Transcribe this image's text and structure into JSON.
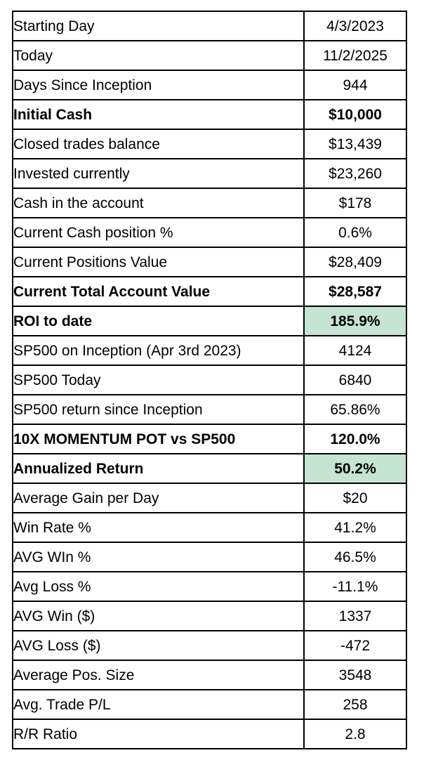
{
  "table": {
    "columns": [
      "metric",
      "value"
    ],
    "rows": [
      {
        "label": "Starting Day",
        "value": "4/3/2023",
        "bold": false,
        "highlight": false
      },
      {
        "label": "Today",
        "value": "11/2/2025",
        "bold": false,
        "highlight": false
      },
      {
        "label": "Days Since Inception",
        "value": "944",
        "bold": false,
        "highlight": false
      },
      {
        "label": "Initial Cash",
        "value": "$10,000",
        "bold": true,
        "highlight": false
      },
      {
        "label": "Closed trades balance",
        "value": "$13,439",
        "bold": false,
        "highlight": false
      },
      {
        "label": "Invested currently",
        "value": "$23,260",
        "bold": false,
        "highlight": false
      },
      {
        "label": "Cash in the account",
        "value": "$178",
        "bold": false,
        "highlight": false
      },
      {
        "label": "Current Cash position %",
        "value": "0.6%",
        "bold": false,
        "highlight": false
      },
      {
        "label": "Current Positions Value",
        "value": "$28,409",
        "bold": false,
        "highlight": false
      },
      {
        "label": "Current Total Account Value",
        "value": "$28,587",
        "bold": true,
        "highlight": false
      },
      {
        "label": "ROI to date",
        "value": "185.9%",
        "bold": true,
        "highlight": true
      },
      {
        "label": "SP500 on Inception (Apr 3rd 2023)",
        "value": "4124",
        "bold": false,
        "highlight": false
      },
      {
        "label": "SP500 Today",
        "value": "6840",
        "bold": false,
        "highlight": false
      },
      {
        "label": "SP500 return since Inception",
        "value": "65.86%",
        "bold": false,
        "highlight": false
      },
      {
        "label": "10X MOMENTUM POT vs SP500",
        "value": "120.0%",
        "bold": true,
        "highlight": false
      },
      {
        "label": "Annualized Return",
        "value": "50.2%",
        "bold": true,
        "highlight": true
      },
      {
        "label": "Average Gain per Day",
        "value": "$20",
        "bold": false,
        "highlight": false
      },
      {
        "label": "Win Rate %",
        "value": "41.2%",
        "bold": false,
        "highlight": false
      },
      {
        "label": "AVG WIn %",
        "value": "46.5%",
        "bold": false,
        "highlight": false
      },
      {
        "label": "Avg Loss %",
        "value": "-11.1%",
        "bold": false,
        "highlight": false
      },
      {
        "label": "AVG Win ($)",
        "value": "1337",
        "bold": false,
        "highlight": false
      },
      {
        "label": "AVG Loss ($)",
        "value": "-472",
        "bold": false,
        "highlight": false
      },
      {
        "label": "Average Pos. Size",
        "value": "3548",
        "bold": false,
        "highlight": false
      },
      {
        "label": "Avg. Trade P/L",
        "value": "258",
        "bold": false,
        "highlight": false
      },
      {
        "label": "R/R Ratio",
        "value": "2.8",
        "bold": false,
        "highlight": false
      }
    ]
  },
  "colors": {
    "highlight_green": "#c6e4d2",
    "border": "#000000",
    "background": "#ffffff",
    "text": "#000000"
  }
}
